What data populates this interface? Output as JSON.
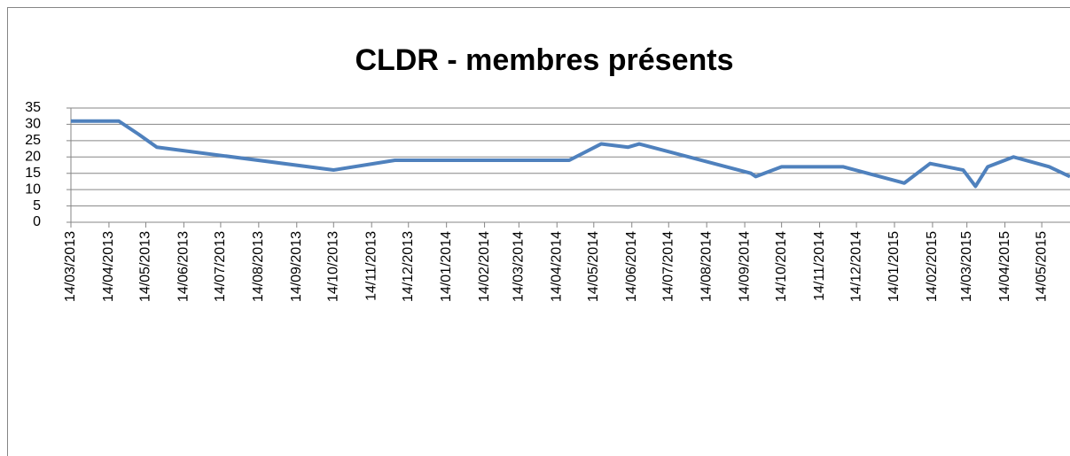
{
  "chart_data": {
    "type": "line",
    "title": "CLDR - membres présents",
    "x": [
      "14/03/2013",
      "22/04/2013",
      "08/05/2013",
      "23/05/2013",
      "14/10/2013",
      "03/12/2013",
      "24/04/2014",
      "20/05/2014",
      "11/06/2014",
      "20/06/2014",
      "19/09/2014",
      "23/09/2014",
      "14/10/2014",
      "03/12/2014",
      "22/01/2015",
      "12/02/2015",
      "11/03/2015",
      "21/03/2015",
      "31/03/2015",
      "21/04/2015",
      "20/05/2015",
      "06/06/2015"
    ],
    "series": [
      {
        "name": "membres présents",
        "color": "#4f81bd",
        "values": [
          31,
          31,
          27,
          23,
          16,
          19,
          19,
          24,
          23,
          24,
          15,
          14,
          17,
          17,
          12,
          18,
          16,
          11,
          17,
          20,
          17,
          14
        ]
      }
    ],
    "xlim": [
      "14/03/2013",
      "06/06/2015"
    ],
    "xticks": [
      "14/03/2013",
      "14/04/2013",
      "14/05/2013",
      "14/06/2013",
      "14/07/2013",
      "14/08/2013",
      "14/09/2013",
      "14/10/2013",
      "14/11/2013",
      "14/12/2013",
      "14/01/2014",
      "14/02/2014",
      "14/03/2014",
      "14/04/2014",
      "14/05/2014",
      "14/06/2014",
      "14/07/2014",
      "14/08/2014",
      "14/09/2014",
      "14/10/2014",
      "14/11/2014",
      "14/12/2014",
      "14/01/2015",
      "14/02/2015",
      "14/03/2015",
      "14/04/2015",
      "14/05/2015"
    ],
    "ylim": [
      0,
      35
    ],
    "yticks": [
      0,
      5,
      10,
      15,
      20,
      25,
      30,
      35
    ],
    "grid": true
  }
}
